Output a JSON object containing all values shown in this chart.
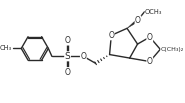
{
  "bg_color": "#ffffff",
  "line_color": "#2a2a2a",
  "line_width": 1.0,
  "figsize": [
    1.85,
    1.03
  ],
  "dpi": 100,
  "xlim": [
    0,
    1.85
  ],
  "ylim": [
    0,
    1.03
  ]
}
